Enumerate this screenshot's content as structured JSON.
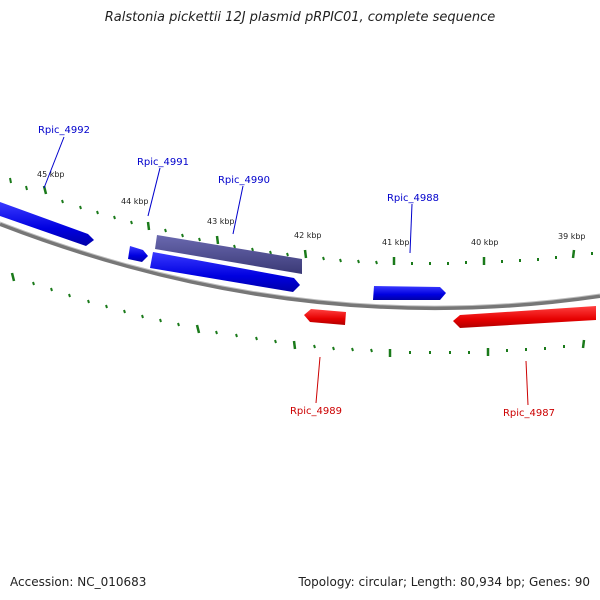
{
  "title": "Ralstonia pickettii 12J plasmid pRPIC01, complete sequence",
  "accession_text": "Accession: NC_010683",
  "topology_text": "Topology: circular; Length: 80,934 bp; Genes: 90",
  "colors": {
    "forward": "#0000e6",
    "reverse": "#e60000",
    "selected": "#4b4a8c",
    "ticks": "#1a7a1a",
    "backbone": "#7a7a7a"
  },
  "kbp_ticks": [
    "45 kbp",
    "44 kbp",
    "43 kbp",
    "42 kbp",
    "41 kbp",
    "40 kbp",
    "39 kbp"
  ],
  "genes": {
    "rpic_4992": {
      "label": "Rpic_4992",
      "strand": "forward"
    },
    "rpic_4991": {
      "label": "Rpic_4991",
      "strand": "forward"
    },
    "rpic_4990": {
      "label": "Rpic_4990",
      "strand": "forward"
    },
    "rpic_4988": {
      "label": "Rpic_4988",
      "strand": "forward"
    },
    "rpic_4989": {
      "label": "Rpic_4989",
      "strand": "reverse"
    },
    "rpic_4987": {
      "label": "Rpic_4987",
      "strand": "reverse"
    }
  }
}
